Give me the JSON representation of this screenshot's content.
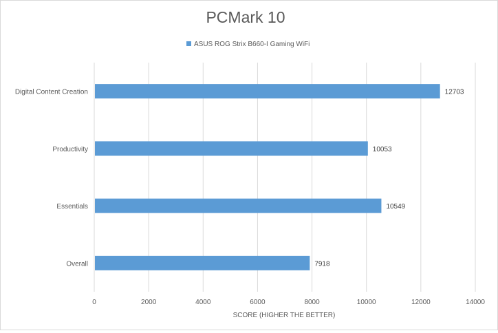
{
  "chart_data": {
    "type": "bar",
    "orientation": "horizontal",
    "title": "PCMark 10",
    "xlabel": "SCORE (HIGHER THE BETTER)",
    "ylabel": "",
    "xlim": [
      0,
      14000
    ],
    "x_ticks": [
      0,
      2000,
      4000,
      6000,
      8000,
      10000,
      12000,
      14000
    ],
    "grid": true,
    "legend_position": "top",
    "categories": [
      "Digital Content Creation",
      "Productivity",
      "Essentials",
      "Overall"
    ],
    "series": [
      {
        "name": "ASUS ROG Strix B660-I Gaming WiFi",
        "color": "#5b9bd5",
        "values": [
          12703,
          10053,
          10549,
          7918
        ]
      }
    ]
  }
}
